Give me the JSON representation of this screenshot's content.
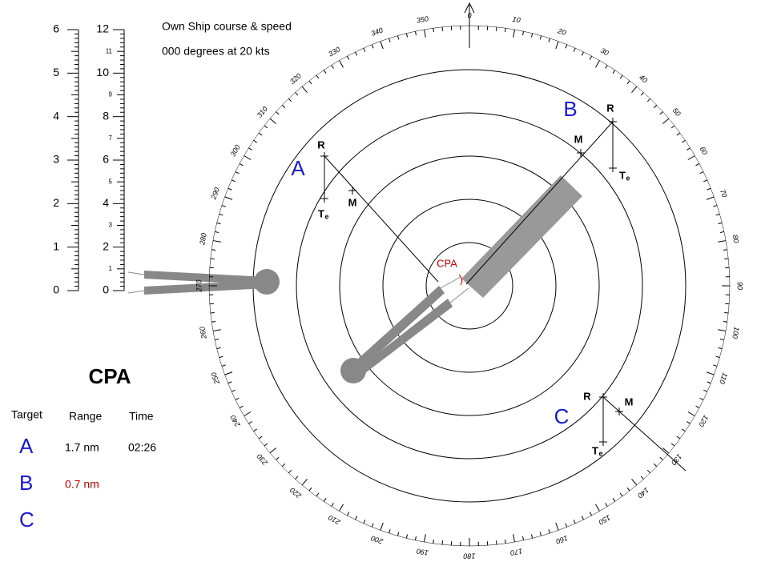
{
  "header": {
    "line1": "Own Ship course & speed",
    "line2": "000 degrees at 20 kts"
  },
  "scale_nm": [
    0,
    1,
    2,
    3,
    4,
    5,
    6
  ],
  "scale_cables": [
    0,
    1,
    2,
    3,
    4,
    5,
    6,
    7,
    8,
    9,
    10,
    11,
    12
  ],
  "bearings": [
    0,
    10,
    20,
    30,
    40,
    50,
    60,
    70,
    80,
    90,
    100,
    110,
    120,
    130,
    140,
    150,
    160,
    170,
    180,
    190,
    200,
    210,
    220,
    230,
    240,
    250,
    260,
    270,
    280,
    290,
    300,
    310,
    320,
    330,
    340,
    350
  ],
  "plot_labels": {
    "R": "R",
    "M": "M",
    "T": "T",
    "sub": "e",
    "cpa": "CPA"
  },
  "targets": [
    "A",
    "B",
    "C"
  ],
  "cpa_table": {
    "title": "CPA",
    "headers": [
      "Target",
      "Range",
      "Time"
    ],
    "rows": [
      [
        "A",
        "1.7 nm",
        "02:26"
      ],
      [
        "B",
        "0.7 nm"
      ],
      [
        "C"
      ]
    ]
  }
}
